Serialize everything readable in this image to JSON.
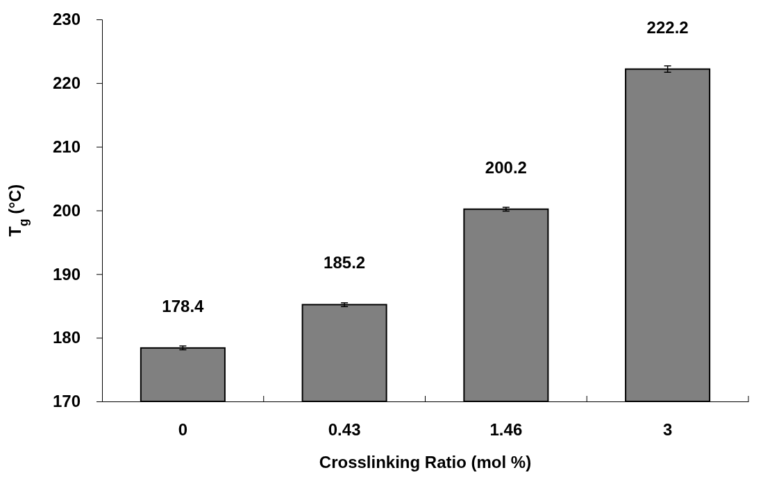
{
  "chart_data": {
    "type": "bar",
    "xlabel": "Crosslinking Ratio (mol %)",
    "ylabel": "T$_{g}$ (°C)",
    "categories": [
      "0",
      "0.43",
      "1.46",
      "3"
    ],
    "values": [
      178.4,
      185.2,
      200.2,
      222.2
    ],
    "errors": [
      0.3,
      0.3,
      0.3,
      0.5
    ],
    "color": "#808080",
    "ylim": [
      170,
      230
    ],
    "yticks": [
      170,
      180,
      190,
      200,
      210,
      220,
      230
    ],
    "data_labels": true
  }
}
